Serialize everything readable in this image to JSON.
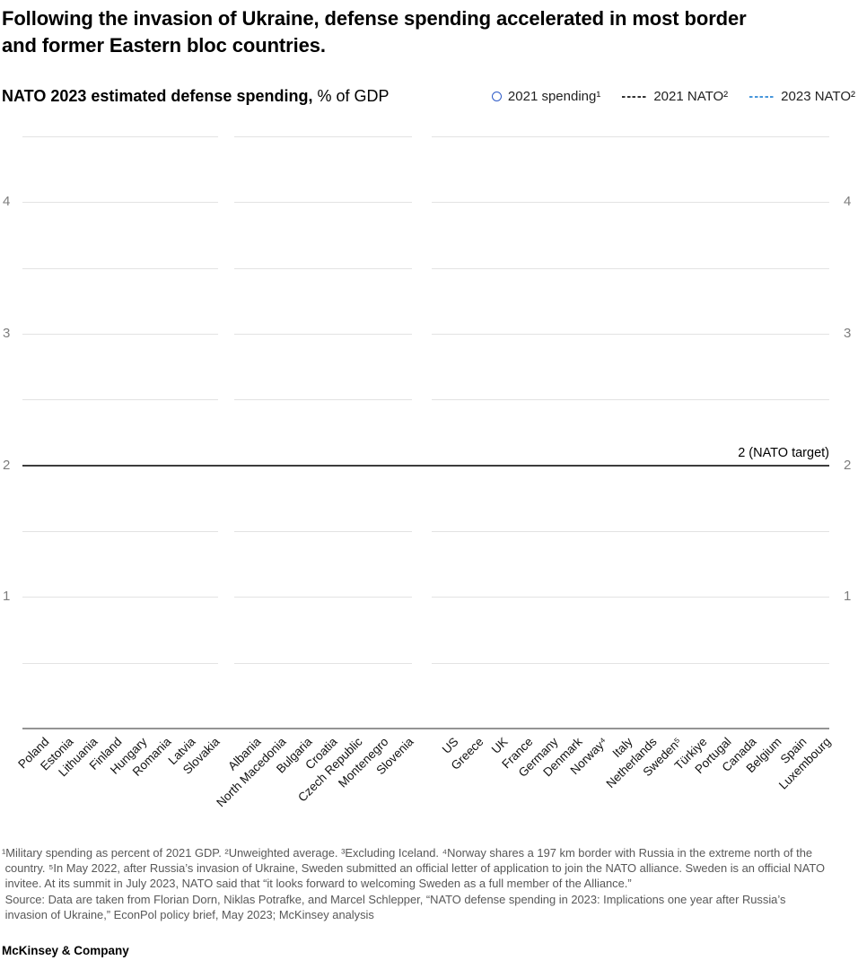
{
  "header": {
    "title_line1": "Following the invasion of Ukraine, defense spending accelerated in most border",
    "title_line2": "and former Eastern bloc countries.",
    "subtitle_bold": "NATO 2023 estimated defense spending,",
    "subtitle_rest": " % of GDP"
  },
  "legend": {
    "items": [
      {
        "label": "2021 spending¹",
        "marker": "circle-outline",
        "color": "#2e5bc8"
      },
      {
        "label": "2021 NATO²",
        "marker": "dashed-line",
        "color": "#333333"
      },
      {
        "label": "2023 NATO²",
        "marker": "dashed-line",
        "color": "#4796db"
      }
    ]
  },
  "chart_data": {
    "type": "scatter",
    "title": "NATO 2023 estimated defense spending, % of GDP",
    "ylim": [
      0,
      4.5
    ],
    "yticks": [
      1,
      2,
      3,
      4
    ],
    "gridline_step": 0.5,
    "grid": true,
    "reference_line": {
      "value": 2,
      "label": "2 (NATO target)"
    },
    "groups": [
      {
        "categories": [
          "Poland",
          "Estonia",
          "Lithuania",
          "Finland",
          "Hungary",
          "Romania",
          "Latvia",
          "Slovakia"
        ]
      },
      {
        "categories": [
          "Albania",
          "North Macedonia",
          "Bulgaria",
          "Croatia",
          "Czech Republic",
          "Montenegro",
          "Slovenia"
        ]
      },
      {
        "categories": [
          "US",
          "Greece",
          "UK",
          "France",
          "Germany",
          "Denmark",
          "Norway⁴",
          "Italy",
          "Netherlands",
          "Sweden⁵",
          "Türkiye",
          "Portugal",
          "Canada",
          "Belgium",
          "Spain",
          "Luxembourg"
        ]
      }
    ],
    "series": [],
    "points_rendered": false,
    "colors": {
      "gridline": "#e3e3e3",
      "axis_line": "#949494",
      "target_line": "#3d3d3d",
      "tick_label": "#7d7d7d"
    }
  },
  "footnotes": {
    "lines": [
      "¹Military spending as percent of 2021 GDP. ²Unweighted average. ³Excluding Iceland. ⁴Norway shares a 197 km border with Russia in the extreme north of the",
      " country. ⁵In May 2022, after Russia’s invasion of Ukraine, Sweden submitted an official letter of application to join the NATO alliance. Sweden is an official NATO",
      " invitee. At its summit in July 2023, NATO said that “it looks forward to welcoming Sweden as a full member of the Alliance.”"
    ]
  },
  "source": {
    "lines": [
      " Source: Data are taken from Florian Dorn, Niklas Potrafke, and Marcel Schlepper, “NATO defense spending in 2023: Implications one year after Russia’s",
      " invasion of Ukraine,” EconPol policy brief, May 2023; McKinsey analysis"
    ]
  },
  "footer": {
    "brand": "McKinsey & Company"
  }
}
